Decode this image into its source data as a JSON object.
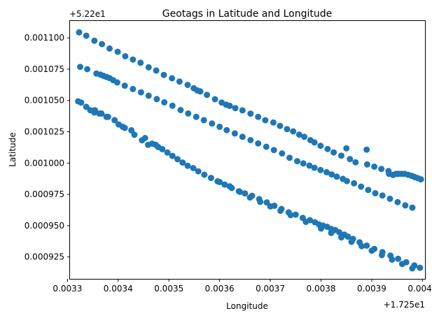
{
  "chart_data": {
    "type": "scatter",
    "title": "Geotags in Latitude and Longitude",
    "xlabel": "Longitude",
    "ylabel": "Latitude",
    "x_offset_label": "+1.725e1",
    "y_offset_label": "+5.22e1",
    "xlim": [
      0.003305,
      0.004005
    ],
    "ylim": [
      0.0009075,
      0.0011135
    ],
    "x_ticks": [
      0.0033,
      0.0034,
      0.0035,
      0.0036,
      0.0037,
      0.0038,
      0.0039,
      0.004
    ],
    "x_tick_labels": [
      "0.0033",
      "0.0034",
      "0.0035",
      "0.0036",
      "0.0037",
      "0.0038",
      "0.0039",
      "0.0040"
    ],
    "y_ticks": [
      0.000925,
      0.00095,
      0.000975,
      0.001,
      0.001025,
      0.00105,
      0.001075,
      0.0011
    ],
    "y_tick_labels": [
      "0.000925",
      "0.000950",
      "0.000975",
      "0.001000",
      "0.001025",
      "0.001050",
      "0.001075",
      "0.001100"
    ],
    "grid": false,
    "marker_color": "#1f77b4",
    "points": [
      [
        0.003323,
        0.0011044
      ],
      [
        0.003337,
        0.0011017
      ],
      [
        0.003353,
        0.0010977
      ],
      [
        0.003368,
        0.001095
      ],
      [
        0.003383,
        0.0010915
      ],
      [
        0.003399,
        0.0010889
      ],
      [
        0.003414,
        0.0010853
      ],
      [
        0.003429,
        0.0010827
      ],
      [
        0.003444,
        0.0010801
      ],
      [
        0.00346,
        0.0010765
      ],
      [
        0.003475,
        0.0010739
      ],
      [
        0.00349,
        0.0010704
      ],
      [
        0.003506,
        0.0010677
      ],
      [
        0.003521,
        0.0010651
      ],
      [
        0.003537,
        0.0010624
      ],
      [
        0.003549,
        0.0010598
      ],
      [
        0.003556,
        0.001058
      ],
      [
        0.003562,
        0.0010572
      ],
      [
        0.003575,
        0.0010545
      ],
      [
        0.003591,
        0.001051
      ],
      [
        0.003604,
        0.0010483
      ],
      [
        0.003613,
        0.0010466
      ],
      [
        0.00362,
        0.0010457
      ],
      [
        0.003631,
        0.0010439
      ],
      [
        0.003645,
        0.0010421
      ],
      [
        0.003661,
        0.0010395
      ],
      [
        0.003676,
        0.0010369
      ],
      [
        0.00369,
        0.0010342
      ],
      [
        0.003706,
        0.0010324
      ],
      [
        0.003719,
        0.0010297
      ],
      [
        0.003733,
        0.0010271
      ],
      [
        0.003745,
        0.0010253
      ],
      [
        0.003757,
        0.0010227
      ],
      [
        0.003767,
        0.001021
      ],
      [
        0.003779,
        0.0010183
      ],
      [
        0.003787,
        0.0010165
      ],
      [
        0.003799,
        0.0010138
      ],
      [
        0.003813,
        0.0010112
      ],
      [
        0.003825,
        0.0010085
      ],
      [
        0.00384,
        0.0010059
      ],
      [
        0.003857,
        0.0010032
      ],
      [
        0.003868,
        0.0010006
      ],
      [
        0.003891,
        0.0009989
      ],
      [
        0.003905,
        0.0009971
      ],
      [
        0.003919,
        0.0009953
      ],
      [
        0.003933,
        0.0009936
      ],
      [
        0.00389,
        0.0010107
      ],
      [
        0.00385,
        0.0010118
      ],
      [
        0.003934,
        0.0009914
      ],
      [
        0.003942,
        0.0009905
      ],
      [
        0.003948,
        0.0009914
      ],
      [
        0.003953,
        0.0009914
      ],
      [
        0.003959,
        0.0009914
      ],
      [
        0.003965,
        0.0009914
      ],
      [
        0.003972,
        0.0009906
      ],
      [
        0.003979,
        0.0009898
      ],
      [
        0.003985,
        0.0009888
      ],
      [
        0.003991,
        0.0009879
      ],
      [
        0.003997,
        0.000987
      ],
      [
        0.003325,
        0.0010768
      ],
      [
        0.003339,
        0.001075
      ],
      [
        0.003357,
        0.0010715
      ],
      [
        0.003365,
        0.0010706
      ],
      [
        0.003371,
        0.0010697
      ],
      [
        0.003377,
        0.0010688
      ],
      [
        0.003383,
        0.0010679
      ],
      [
        0.00339,
        0.0010662
      ],
      [
        0.003398,
        0.0010644
      ],
      [
        0.003413,
        0.0010618
      ],
      [
        0.003429,
        0.0010591
      ],
      [
        0.003445,
        0.0010565
      ],
      [
        0.00346,
        0.0010538
      ],
      [
        0.003476,
        0.0010511
      ],
      [
        0.003491,
        0.0010485
      ],
      [
        0.003507,
        0.0010458
      ],
      [
        0.003523,
        0.0010423
      ],
      [
        0.003538,
        0.0010396
      ],
      [
        0.003554,
        0.0010369
      ],
      [
        0.003569,
        0.0010343
      ],
      [
        0.003585,
        0.0010316
      ],
      [
        0.0036,
        0.001029
      ],
      [
        0.003614,
        0.0010263
      ],
      [
        0.00363,
        0.0010237
      ],
      [
        0.003645,
        0.001021
      ],
      [
        0.003661,
        0.0010183
      ],
      [
        0.003676,
        0.0010157
      ],
      [
        0.003692,
        0.001013
      ],
      [
        0.003707,
        0.0010104
      ],
      [
        0.003723,
        0.0010077
      ],
      [
        0.003738,
        0.0010042
      ],
      [
        0.003753,
        0.0010015
      ],
      [
        0.003765,
        0.0009997
      ],
      [
        0.003777,
        0.000998
      ],
      [
        0.003787,
        0.0009962
      ],
      [
        0.003799,
        0.0009944
      ],
      [
        0.003811,
        0.0009927
      ],
      [
        0.003821,
        0.0009909
      ],
      [
        0.003831,
        0.0009891
      ],
      [
        0.003843,
        0.0009874
      ],
      [
        0.003851,
        0.0009856
      ],
      [
        0.003865,
        0.0009838
      ],
      [
        0.003879,
        0.0009812
      ],
      [
        0.003893,
        0.0009785
      ],
      [
        0.003907,
        0.0009759
      ],
      [
        0.003921,
        0.0009741
      ],
      [
        0.003936,
        0.0009715
      ],
      [
        0.003951,
        0.0009688
      ],
      [
        0.003966,
        0.0009662
      ],
      [
        0.00398,
        0.0009644
      ],
      [
        0.003321,
        0.0010493
      ],
      [
        0.003327,
        0.0010483
      ],
      [
        0.003337,
        0.0010449
      ],
      [
        0.003345,
        0.0010422
      ],
      [
        0.003353,
        0.0010404
      ],
      [
        0.003363,
        0.0010396
      ],
      [
        0.003377,
        0.0010369
      ],
      [
        0.003393,
        0.0010343
      ],
      [
        0.003401,
        0.0010308
      ],
      [
        0.003409,
        0.001029
      ],
      [
        0.003413,
        0.0010281
      ],
      [
        0.003426,
        0.0010262
      ],
      [
        0.003432,
        0.0010226
      ],
      [
        0.003447,
        0.0010182
      ],
      [
        0.003453,
        0.00102
      ],
      [
        0.003459,
        0.0010146
      ],
      [
        0.003467,
        0.0010155
      ],
      [
        0.003474,
        0.0010146
      ],
      [
        0.003479,
        0.0010128
      ],
      [
        0.003487,
        0.0010111
      ],
      [
        0.003497,
        0.0010084
      ],
      [
        0.003507,
        0.0010057
      ],
      [
        0.003517,
        0.0010031
      ],
      [
        0.003527,
        0.0010004
      ],
      [
        0.003537,
        0.0009978
      ],
      [
        0.003548,
        0.000996
      ],
      [
        0.003558,
        0.0009934
      ],
      [
        0.00357,
        0.0009907
      ],
      [
        0.003583,
        0.0009881
      ],
      [
        0.003596,
        0.0009854
      ],
      [
        0.00361,
        0.0009828
      ],
      [
        0.003624,
        0.0009801
      ],
      [
        0.003638,
        0.0009775
      ],
      [
        0.00365,
        0.0009757
      ],
      [
        0.003664,
        0.0009739
      ],
      [
        0.003678,
        0.0009712
      ],
      [
        0.003693,
        0.0009686
      ],
      [
        0.003708,
        0.0009659
      ],
      [
        0.003722,
        0.0009633
      ],
      [
        0.003736,
        0.0009606
      ],
      [
        0.00375,
        0.0009588
      ],
      [
        0.003764,
        0.0009562
      ],
      [
        0.003778,
        0.0009544
      ],
      [
        0.003788,
        0.0009527
      ],
      [
        0.003796,
        0.0009509
      ],
      [
        0.003804,
        0.00095
      ],
      [
        0.003812,
        0.0009491
      ],
      [
        0.00382,
        0.0009474
      ],
      [
        0.003828,
        0.0009465
      ],
      [
        0.003836,
        0.0009447
      ],
      [
        0.003846,
        0.0009429
      ],
      [
        0.003853,
        0.0009412
      ],
      [
        0.003863,
        0.0009394
      ],
      [
        0.003876,
        0.0009367
      ],
      [
        0.00389,
        0.0009341
      ],
      [
        0.003905,
        0.0009314
      ],
      [
        0.003921,
        0.0009288
      ],
      [
        0.003937,
        0.0009261
      ],
      [
        0.003952,
        0.0009235
      ],
      [
        0.003968,
        0.0009208
      ],
      [
        0.003984,
        0.0009182
      ],
      [
        0.003995,
        0.0009164
      ],
      [
        0.003354,
        0.0010422
      ],
      [
        0.003367,
        0.0010396
      ],
      [
        0.00338,
        0.0010369
      ],
      [
        0.0036,
        0.0009849
      ],
      [
        0.00362,
        0.0009814
      ],
      [
        0.00364,
        0.000977
      ],
      [
        0.00366,
        0.0009725
      ],
      [
        0.00368,
        0.000969
      ],
      [
        0.0037,
        0.0009654
      ],
      [
        0.00372,
        0.0009619
      ],
      [
        0.00374,
        0.0009584
      ],
      [
        0.00377,
        0.000953
      ],
      [
        0.0038,
        0.0009477
      ],
      [
        0.00382,
        0.0009442
      ],
      [
        0.00384,
        0.0009406
      ],
      [
        0.00386,
        0.0009371
      ],
      [
        0.00388,
        0.0009336
      ],
      [
        0.0039,
        0.00093
      ],
      [
        0.00392,
        0.0009265
      ],
      [
        0.00394,
        0.0009229
      ],
      [
        0.00396,
        0.0009194
      ],
      [
        0.00398,
        0.0009159
      ]
    ]
  }
}
